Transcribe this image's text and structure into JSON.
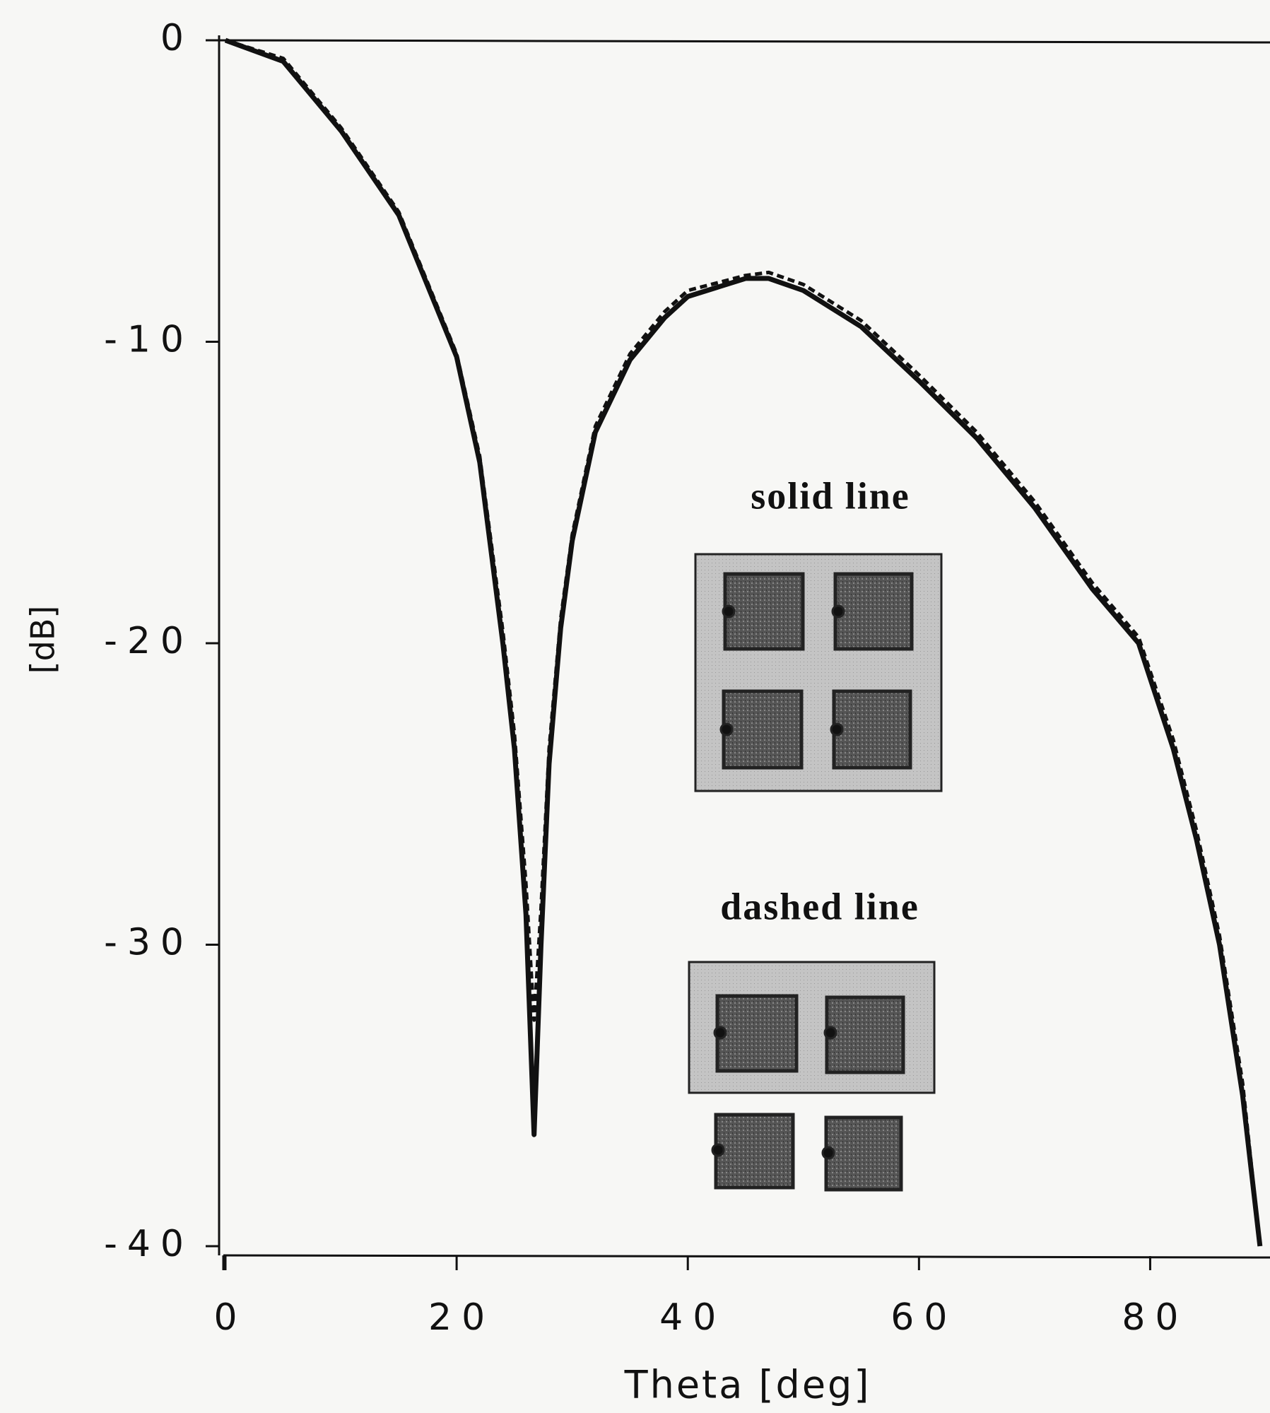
{
  "chart_data": {
    "type": "line",
    "xlabel": "Theta [deg]",
    "ylabel": "[dB]",
    "xlim": [
      0,
      90
    ],
    "ylim": [
      -40,
      0
    ],
    "xticks": [
      0,
      20,
      40,
      60,
      80
    ],
    "yticks": [
      0,
      -10,
      -20,
      -30,
      -40
    ],
    "x": [
      0,
      5,
      10,
      15,
      20,
      22,
      24,
      25,
      26,
      26.7,
      27.3,
      28,
      29,
      30,
      32,
      35,
      38,
      40,
      45,
      47,
      50,
      55,
      60,
      65,
      70,
      75,
      79,
      82,
      84,
      86,
      88,
      89.5
    ],
    "series": [
      {
        "name": "solid line",
        "color": "#111111",
        "style": "solid",
        "values": [
          0,
          -0.7,
          -3,
          -5.8,
          -10.5,
          -14,
          -20,
          -23.5,
          -29,
          -36.3,
          -30,
          -24,
          -19.5,
          -16.6,
          -13,
          -10.6,
          -9.2,
          -8.5,
          -7.9,
          -7.9,
          -8.3,
          -9.5,
          -11.3,
          -13.2,
          -15.5,
          -18.2,
          -20,
          -23.5,
          -26.5,
          -30,
          -35,
          -40
        ]
      },
      {
        "name": "dashed line",
        "color": "#111111",
        "style": "dashed",
        "values": [
          0,
          -0.6,
          -2.9,
          -5.7,
          -10.4,
          -13.8,
          -19.6,
          -23,
          -28,
          -32.5,
          -28.8,
          -23.5,
          -19.2,
          -16.4,
          -12.8,
          -10.4,
          -9,
          -8.3,
          -7.8,
          -7.7,
          -8.1,
          -9.3,
          -11.1,
          -13,
          -15.3,
          -18,
          -19.8,
          -23.2,
          -26.2,
          -29.7,
          -34.6,
          -40
        ]
      }
    ]
  }
}
